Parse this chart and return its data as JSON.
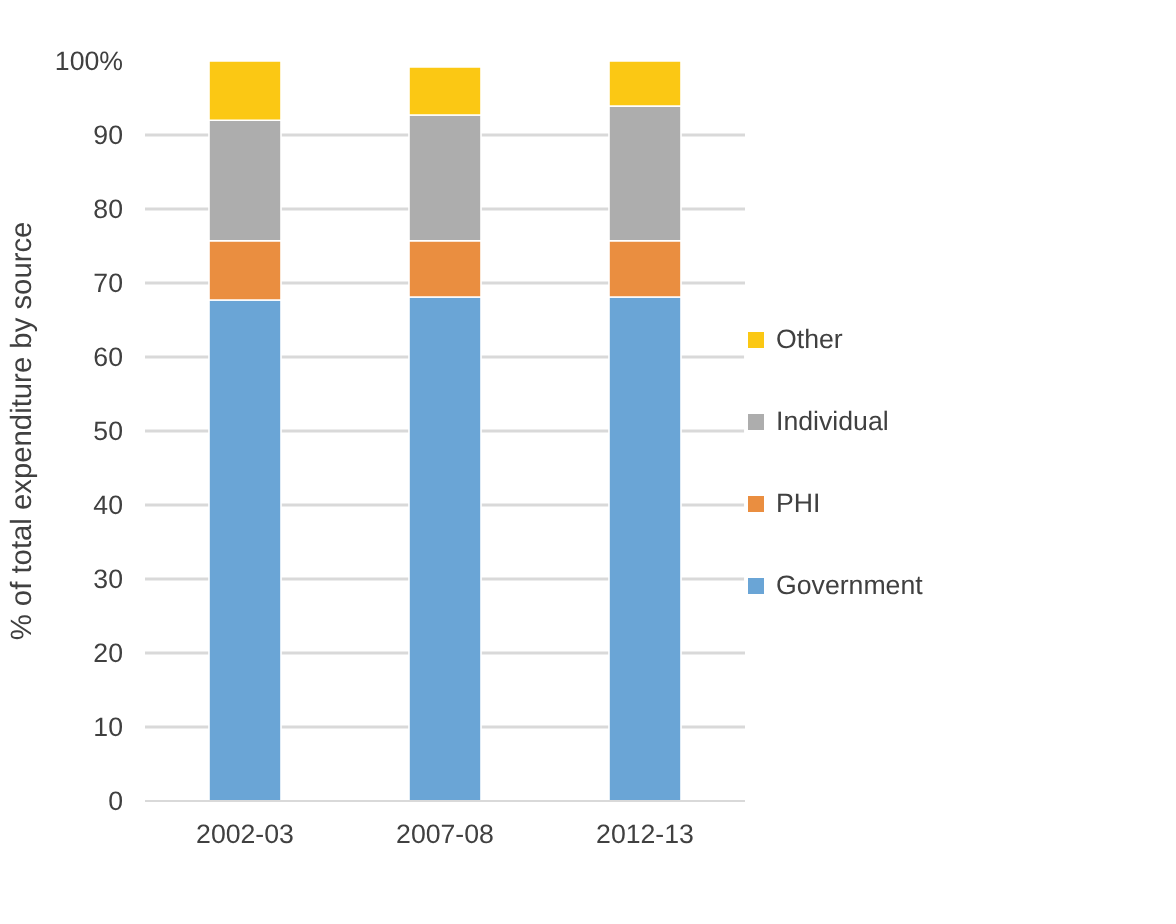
{
  "chart_data": {
    "type": "bar",
    "stacked": true,
    "ylabel": "% of total expenditure by source",
    "categories": [
      "2002-03",
      "2007-08",
      "2012-13"
    ],
    "series": [
      {
        "name": "Government",
        "color": "#6aa5d6",
        "values": [
          67.7,
          68.1,
          68.1
        ]
      },
      {
        "name": "PHI",
        "color": "#ea8e40",
        "values": [
          8.0,
          7.6,
          7.6
        ]
      },
      {
        "name": "Individual",
        "color": "#adadad",
        "values": [
          16.3,
          17.0,
          18.2
        ]
      },
      {
        "name": "Other",
        "color": "#fbc814",
        "values": [
          8.0,
          6.5,
          6.1
        ]
      }
    ],
    "ylim": [
      0,
      100
    ],
    "yticks": [
      0,
      10,
      20,
      30,
      40,
      50,
      60,
      70,
      80,
      90,
      {
        "value": 100,
        "label": "100%"
      }
    ],
    "grid": "y",
    "legend": "right"
  }
}
